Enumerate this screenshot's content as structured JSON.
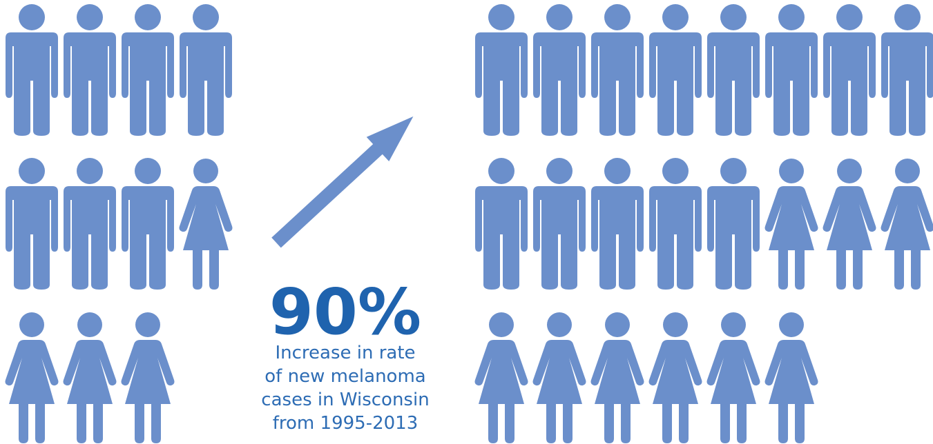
{
  "headline": "90%",
  "caption": [
    "Increase in rate",
    "of new melanoma",
    "cases in Wisconsin",
    "from 1995-2013"
  ]
}
